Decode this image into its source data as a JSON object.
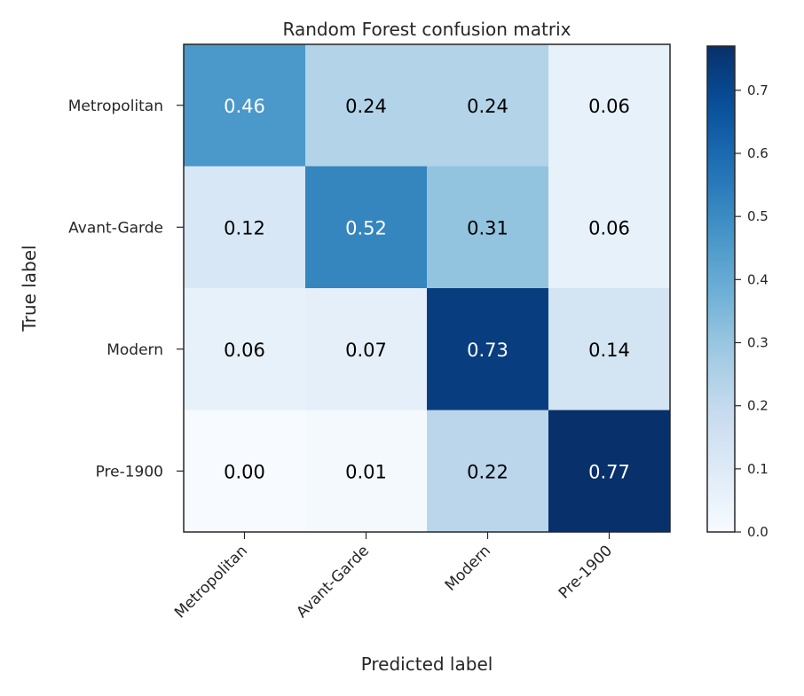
{
  "chart_data": {
    "type": "heatmap",
    "title": "Random Forest confusion matrix",
    "xlabel": "Predicted label",
    "ylabel": "True label",
    "x_categories": [
      "Metropolitan",
      "Avant-Garde",
      "Modern",
      "Pre-1900"
    ],
    "y_categories": [
      "Metropolitan",
      "Avant-Garde",
      "Modern",
      "Pre-1900"
    ],
    "values": [
      [
        0.46,
        0.24,
        0.24,
        0.06
      ],
      [
        0.12,
        0.52,
        0.31,
        0.06
      ],
      [
        0.06,
        0.07,
        0.73,
        0.14
      ],
      [
        0.0,
        0.01,
        0.22,
        0.77
      ]
    ],
    "value_labels": [
      [
        "0.46",
        "0.24",
        "0.24",
        "0.06"
      ],
      [
        "0.12",
        "0.52",
        "0.31",
        "0.06"
      ],
      [
        "0.06",
        "0.07",
        "0.73",
        "0.14"
      ],
      [
        "0.00",
        "0.01",
        "0.22",
        "0.77"
      ]
    ],
    "colormap": "Blues",
    "colorbar": {
      "range": [
        0.0,
        0.77
      ],
      "ticks": [
        0.0,
        0.1,
        0.2,
        0.3,
        0.4,
        0.5,
        0.6,
        0.7
      ],
      "tick_labels": [
        "0.0",
        "0.1",
        "0.2",
        "0.3",
        "0.4",
        "0.5",
        "0.6",
        "0.7"
      ]
    },
    "grid": false
  }
}
